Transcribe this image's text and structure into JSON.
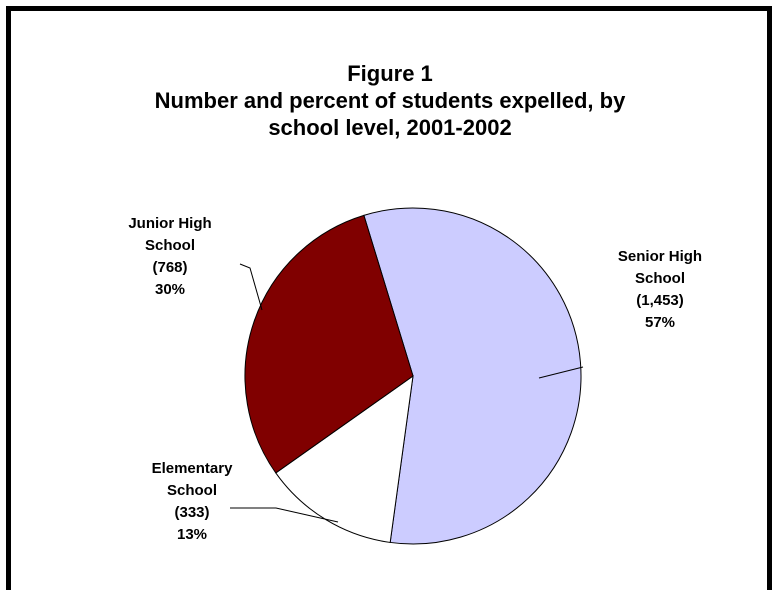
{
  "title_lines": [
    "Figure 1",
    "Number and percent of students expelled, by",
    "school level, 2001-2002"
  ],
  "chart_data": {
    "type": "pie",
    "title": "Figure 1 Number and percent of students expelled, by school level, 2001-2002",
    "slices": [
      {
        "category": "Senior High School",
        "value": 1453,
        "percent": 57,
        "color": "#ccccff",
        "label_lines": [
          "Senior High",
          "School",
          "(1,453)",
          "57%"
        ]
      },
      {
        "category": "Elementary School",
        "value": 333,
        "percent": 13,
        "color": "#ffffff",
        "label_lines": [
          "Elementary",
          "School",
          "(333)",
          "13%"
        ]
      },
      {
        "category": "Junior High School",
        "value": 768,
        "percent": 30,
        "color": "#800000",
        "label_lines": [
          "Junior High",
          "School",
          "(768)",
          "30%"
        ]
      }
    ],
    "legend": "none"
  }
}
